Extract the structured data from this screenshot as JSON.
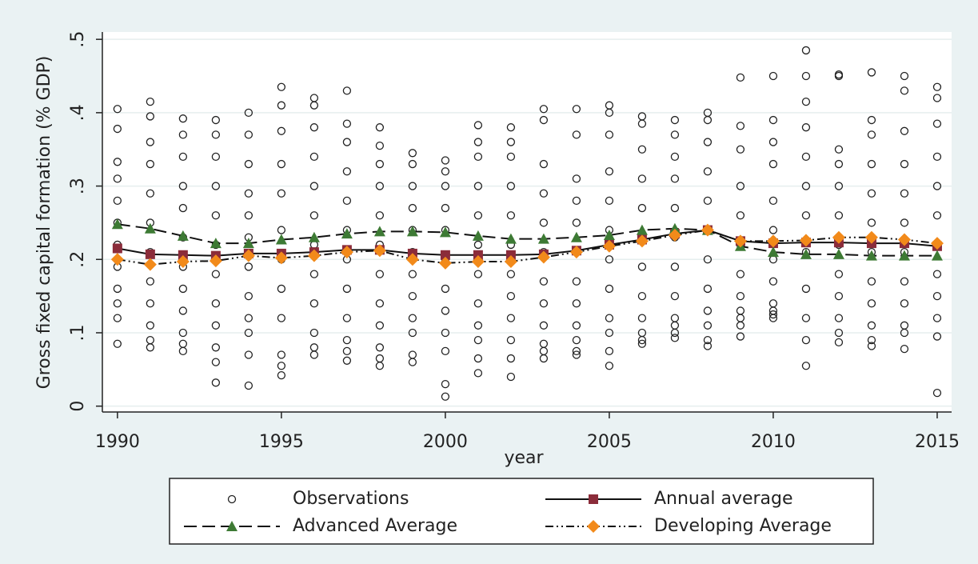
{
  "chart_data": {
    "type": "line",
    "y_label": "Gross fixed capital formation (% GDP)",
    "x_label": "year",
    "x": [
      1990,
      1991,
      1992,
      1993,
      1994,
      1995,
      1996,
      1997,
      1998,
      1999,
      2000,
      2001,
      2002,
      2003,
      2004,
      2005,
      2006,
      2007,
      2008,
      2009,
      2010,
      2011,
      2012,
      2013,
      2014,
      2015
    ],
    "xlim": [
      1989.54,
      2015.44
    ],
    "xticks": [
      1990,
      1995,
      2000,
      2005,
      2010,
      2015
    ],
    "ylim": [
      -0.008,
      0.51
    ],
    "yticks": [
      0,
      {
        "value": 0.1,
        "label": ".1"
      },
      {
        "value": 0.2,
        "label": ".2"
      },
      {
        "value": 0.3,
        "label": ".3"
      },
      {
        "value": 0.4,
        "label": ".4"
      },
      {
        "value": 0.5,
        "label": ".5"
      }
    ],
    "grid": true,
    "legend": "bottom",
    "series": [
      {
        "name": "Observations",
        "marker": "circle",
        "line": "none",
        "color": "#222222",
        "values": [
          [
            0.405,
            0.378,
            0.333,
            0.31,
            0.28,
            0.25,
            0.22,
            0.19,
            0.16,
            0.14,
            0.12,
            0.085
          ],
          [
            0.415,
            0.395,
            0.36,
            0.33,
            0.29,
            0.25,
            0.21,
            0.17,
            0.14,
            0.11,
            0.09,
            0.08
          ],
          [
            0.392,
            0.37,
            0.34,
            0.3,
            0.27,
            0.23,
            0.19,
            0.16,
            0.13,
            0.1,
            0.085,
            0.075
          ],
          [
            0.39,
            0.37,
            0.34,
            0.3,
            0.26,
            0.22,
            0.18,
            0.14,
            0.11,
            0.08,
            0.06,
            0.032
          ],
          [
            0.4,
            0.37,
            0.33,
            0.29,
            0.26,
            0.23,
            0.19,
            0.15,
            0.12,
            0.1,
            0.07,
            0.028
          ],
          [
            0.435,
            0.41,
            0.375,
            0.33,
            0.29,
            0.24,
            0.2,
            0.16,
            0.12,
            0.07,
            0.055,
            0.042
          ],
          [
            0.42,
            0.41,
            0.38,
            0.34,
            0.3,
            0.26,
            0.22,
            0.18,
            0.14,
            0.1,
            0.08,
            0.07
          ],
          [
            0.43,
            0.385,
            0.36,
            0.32,
            0.28,
            0.24,
            0.2,
            0.16,
            0.12,
            0.09,
            0.075,
            0.062
          ],
          [
            0.38,
            0.355,
            0.33,
            0.3,
            0.26,
            0.22,
            0.18,
            0.14,
            0.11,
            0.08,
            0.065,
            0.055
          ],
          [
            0.345,
            0.33,
            0.3,
            0.27,
            0.24,
            0.21,
            0.18,
            0.15,
            0.12,
            0.1,
            0.07,
            0.06
          ],
          [
            0.335,
            0.32,
            0.3,
            0.27,
            0.24,
            0.2,
            0.16,
            0.13,
            0.1,
            0.075,
            0.03,
            0.013
          ],
          [
            0.383,
            0.36,
            0.34,
            0.3,
            0.26,
            0.22,
            0.18,
            0.14,
            0.11,
            0.09,
            0.065,
            0.045
          ],
          [
            0.38,
            0.36,
            0.34,
            0.3,
            0.26,
            0.22,
            0.18,
            0.15,
            0.12,
            0.09,
            0.065,
            0.04
          ],
          [
            0.405,
            0.39,
            0.33,
            0.29,
            0.25,
            0.21,
            0.17,
            0.14,
            0.11,
            0.085,
            0.075,
            0.065
          ],
          [
            0.405,
            0.37,
            0.31,
            0.28,
            0.25,
            0.21,
            0.17,
            0.14,
            0.11,
            0.09,
            0.075,
            0.07
          ],
          [
            0.41,
            0.4,
            0.37,
            0.32,
            0.28,
            0.24,
            0.2,
            0.16,
            0.12,
            0.1,
            0.075,
            0.055
          ],
          [
            0.395,
            0.385,
            0.35,
            0.31,
            0.27,
            0.23,
            0.19,
            0.15,
            0.12,
            0.1,
            0.085,
            0.09
          ],
          [
            0.39,
            0.37,
            0.34,
            0.31,
            0.27,
            0.23,
            0.19,
            0.15,
            0.12,
            0.1,
            0.093,
            0.11
          ],
          [
            0.4,
            0.39,
            0.36,
            0.32,
            0.28,
            0.24,
            0.2,
            0.16,
            0.13,
            0.11,
            0.09,
            0.082
          ],
          [
            0.448,
            0.382,
            0.35,
            0.3,
            0.26,
            0.22,
            0.18,
            0.15,
            0.13,
            0.11,
            0.095,
            0.12
          ],
          [
            0.45,
            0.39,
            0.36,
            0.33,
            0.28,
            0.24,
            0.2,
            0.17,
            0.14,
            0.12,
            0.125,
            0.13
          ],
          [
            0.485,
            0.45,
            0.415,
            0.38,
            0.34,
            0.3,
            0.26,
            0.21,
            0.16,
            0.12,
            0.09,
            0.055
          ],
          [
            0.452,
            0.45,
            0.35,
            0.33,
            0.3,
            0.26,
            0.22,
            0.18,
            0.15,
            0.12,
            0.1,
            0.087
          ],
          [
            0.455,
            0.39,
            0.37,
            0.33,
            0.29,
            0.25,
            0.21,
            0.17,
            0.14,
            0.11,
            0.09,
            0.082
          ],
          [
            0.45,
            0.43,
            0.375,
            0.33,
            0.29,
            0.25,
            0.21,
            0.17,
            0.14,
            0.11,
            0.1,
            0.078
          ],
          [
            0.435,
            0.42,
            0.385,
            0.34,
            0.3,
            0.26,
            0.22,
            0.18,
            0.15,
            0.12,
            0.095,
            0.018
          ]
        ]
      },
      {
        "name": "Annual average",
        "marker": "square",
        "line": "solid",
        "color": "#8b2c3a",
        "values": [
          0.215,
          0.207,
          0.206,
          0.205,
          0.208,
          0.208,
          0.21,
          0.213,
          0.213,
          0.208,
          0.206,
          0.206,
          0.206,
          0.207,
          0.212,
          0.22,
          0.227,
          0.235,
          0.24,
          0.225,
          0.222,
          0.223,
          0.223,
          0.222,
          0.222,
          0.218
        ]
      },
      {
        "name": "Advanced Average",
        "marker": "triangle",
        "line": "dash",
        "color": "#3d7a34",
        "values": [
          0.248,
          0.242,
          0.232,
          0.222,
          0.222,
          0.227,
          0.23,
          0.235,
          0.238,
          0.238,
          0.237,
          0.232,
          0.228,
          0.228,
          0.23,
          0.233,
          0.24,
          0.242,
          0.24,
          0.218,
          0.21,
          0.207,
          0.207,
          0.205,
          0.205,
          0.205
        ]
      },
      {
        "name": "Developing Average",
        "marker": "diamond",
        "line": "dashdot",
        "color": "#f28a1a",
        "values": [
          0.2,
          0.193,
          0.197,
          0.198,
          0.205,
          0.202,
          0.205,
          0.21,
          0.212,
          0.2,
          0.195,
          0.197,
          0.197,
          0.203,
          0.21,
          0.218,
          0.225,
          0.233,
          0.24,
          0.225,
          0.225,
          0.226,
          0.23,
          0.23,
          0.227,
          0.222
        ]
      }
    ]
  }
}
